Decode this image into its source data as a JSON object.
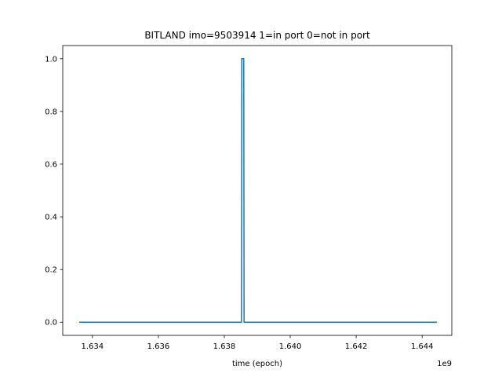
{
  "chart_data": {
    "type": "line",
    "title": "BITLAND imo=9503914 1=in port 0=not in port",
    "xlabel": "time (epoch)",
    "ylabel": "",
    "x_offset_label": "1e9",
    "xlim": [
      1.6331,
      1.6449
    ],
    "ylim": [
      -0.05,
      1.05
    ],
    "x_ticks": [
      1.634,
      1.636,
      1.638,
      1.64,
      1.642,
      1.644
    ],
    "x_tick_labels": [
      "1.634",
      "1.636",
      "1.638",
      "1.640",
      "1.642",
      "1.644"
    ],
    "y_ticks": [
      0.0,
      0.2,
      0.4,
      0.6,
      0.8,
      1.0
    ],
    "y_tick_labels": [
      "0.0",
      "0.2",
      "0.4",
      "0.6",
      "0.8",
      "1.0"
    ],
    "grid": false,
    "series": [
      {
        "color": "#1f77b4",
        "x": [
          1.6336,
          1.63852,
          1.63853,
          1.63859,
          1.6386,
          1.64445
        ],
        "y": [
          0,
          0,
          1,
          1,
          0,
          0
        ]
      }
    ]
  }
}
